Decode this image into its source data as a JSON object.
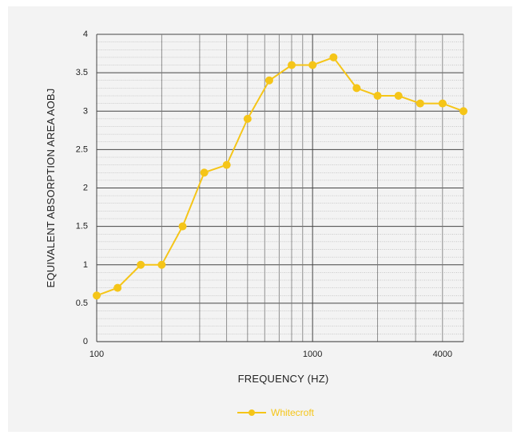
{
  "chart_data": {
    "type": "line",
    "xlabel": "FREQUENCY (HZ)",
    "ylabel": "EQUIVALENT ABSORPTION AREA AOBJ",
    "x_scale": "log",
    "xlim": [
      100,
      5000
    ],
    "ylim": [
      0,
      4
    ],
    "x_tick_labels": [
      "100",
      "1000",
      "4000"
    ],
    "y_tick_labels": [
      "0",
      "0.5",
      "1",
      "1.5",
      "2",
      "2.5",
      "3",
      "3.5",
      "4"
    ],
    "grid": true,
    "legend_position": "bottom",
    "series": [
      {
        "name": "Whitecroft",
        "color": "#f5c518",
        "x": [
          100,
          125,
          160,
          200,
          250,
          315,
          400,
          500,
          630,
          800,
          1000,
          1250,
          1600,
          2000,
          2500,
          3150,
          4000,
          5000
        ],
        "y": [
          0.6,
          0.7,
          1.0,
          1.0,
          1.5,
          2.2,
          2.3,
          2.9,
          3.4,
          3.6,
          3.6,
          3.7,
          3.3,
          3.2,
          3.2,
          3.1,
          3.1,
          3.0
        ]
      }
    ]
  }
}
